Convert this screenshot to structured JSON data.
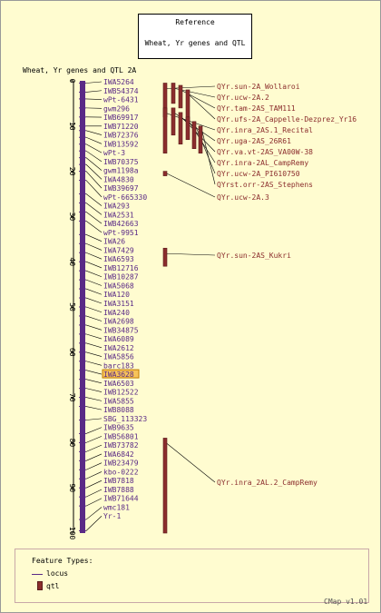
{
  "reference": {
    "line1": "Reference",
    "line2": "Wheat, Yr genes and QTL"
  },
  "map": {
    "title": "Wheat, Yr genes and QTL 2A",
    "scale_min": 0,
    "scale_max": 100,
    "ticks": [
      0,
      10,
      20,
      30,
      40,
      50,
      60,
      70,
      80,
      90,
      100
    ],
    "highlight_color": "#f7c35a",
    "marker_color": "#5a2a86",
    "qtl_color": "#8b2d2d"
  },
  "markers": [
    {
      "name": "IWA5264",
      "pos": 0.5
    },
    {
      "name": "IWB54374",
      "pos": 2.5
    },
    {
      "name": "wPt-6431",
      "pos": 4
    },
    {
      "name": "gwm296",
      "pos": 6
    },
    {
      "name": "IWB69917",
      "pos": 8
    },
    {
      "name": "IWB71220",
      "pos": 10
    },
    {
      "name": "IWB72376",
      "pos": 11
    },
    {
      "name": "IWB13592",
      "pos": 12.5
    },
    {
      "name": "wPt-3",
      "pos": 14
    },
    {
      "name": "IWB70375",
      "pos": 15.5
    },
    {
      "name": "gwm1198a",
      "pos": 17
    },
    {
      "name": "IWA4830",
      "pos": 18.5
    },
    {
      "name": "IWB39697",
      "pos": 20
    },
    {
      "name": "wPt-665330",
      "pos": 22
    },
    {
      "name": "IWA293",
      "pos": 25
    },
    {
      "name": "IWA2531",
      "pos": 27
    },
    {
      "name": "IWB42663",
      "pos": 29
    },
    {
      "name": "wPt-9951",
      "pos": 31
    },
    {
      "name": "IWA26",
      "pos": 34
    },
    {
      "name": "IWA7429",
      "pos": 36
    },
    {
      "name": "IWA6593",
      "pos": 38
    },
    {
      "name": "IWB12716",
      "pos": 40
    },
    {
      "name": "IWB10287",
      "pos": 42
    },
    {
      "name": "IWA5068",
      "pos": 44
    },
    {
      "name": "IWA120",
      "pos": 46
    },
    {
      "name": "IWA3151",
      "pos": 48
    },
    {
      "name": "IWA240",
      "pos": 50
    },
    {
      "name": "IWA2698",
      "pos": 52
    },
    {
      "name": "IWB34875",
      "pos": 54
    },
    {
      "name": "IWA6089",
      "pos": 56
    },
    {
      "name": "IWA2612",
      "pos": 58
    },
    {
      "name": "IWA5856",
      "pos": 60
    },
    {
      "name": "barc183",
      "pos": 62
    },
    {
      "name": "IWA3628",
      "pos": 64,
      "highlight": true
    },
    {
      "name": "IWA6503",
      "pos": 66
    },
    {
      "name": "IWB12522",
      "pos": 68
    },
    {
      "name": "IWA5855",
      "pos": 70
    },
    {
      "name": "IWB8088",
      "pos": 72
    },
    {
      "name": "SBG_113323",
      "pos": 75
    },
    {
      "name": "IWB9635",
      "pos": 78
    },
    {
      "name": "IWB56801",
      "pos": 80
    },
    {
      "name": "IWB73782",
      "pos": 82
    },
    {
      "name": "IWA6842",
      "pos": 84
    },
    {
      "name": "IWB23479",
      "pos": 86
    },
    {
      "name": "kbo-0222",
      "pos": 88
    },
    {
      "name": "IWB7818",
      "pos": 90
    },
    {
      "name": "IWB7888",
      "pos": 92
    },
    {
      "name": "IWB71644",
      "pos": 94
    },
    {
      "name": "wmc181",
      "pos": 97
    },
    {
      "name": "Yr-1",
      "pos": 99.5
    }
  ],
  "qtls": [
    {
      "name": "QYr.sun-2A_Wollaroi",
      "start": 0.5,
      "end": 8,
      "column": 0
    },
    {
      "name": "QYr.ucw-2A.2",
      "start": 0.5,
      "end": 5,
      "column": 1
    },
    {
      "name": "QYr.tam-2AS_TAM111",
      "start": 1,
      "end": 6,
      "column": 2
    },
    {
      "name": "QYr.ufs-2A_Cappelle-Dezprez_Yr16",
      "start": 2,
      "end": 9,
      "column": 3
    },
    {
      "name": "QYr.inra_2AS.1_Recital",
      "start": 6,
      "end": 16,
      "column": 0
    },
    {
      "name": "QYr.uga-2AS_26R61",
      "start": 6,
      "end": 12,
      "column": 1
    },
    {
      "name": "QYr.va.vt-2AS_VA00W-38",
      "start": 7,
      "end": 14,
      "column": 2
    },
    {
      "name": "QYr.inra-2AL_CampRemy",
      "start": 8,
      "end": 13,
      "column": 3
    },
    {
      "name": "QYr.ucw-2A_PI610750",
      "start": 9,
      "end": 15,
      "column": 4
    },
    {
      "name": "QYrst.orr-2AS_Stephens",
      "start": 10,
      "end": 16,
      "column": 5
    },
    {
      "name": "QYr.ucw-2A.3",
      "start": 20,
      "end": 21,
      "column": 0
    },
    {
      "name": "QYr.sun-2AS_Kukri",
      "start": 37,
      "end": 41,
      "column": 0
    },
    {
      "name": "QYr.inra_2AL.2_CampRemy",
      "start": 79,
      "end": 100,
      "column": 0
    }
  ],
  "legend": {
    "title": "Feature Types:",
    "locus": "locus",
    "qtl": "qtl"
  },
  "version": "CMap v1.01"
}
